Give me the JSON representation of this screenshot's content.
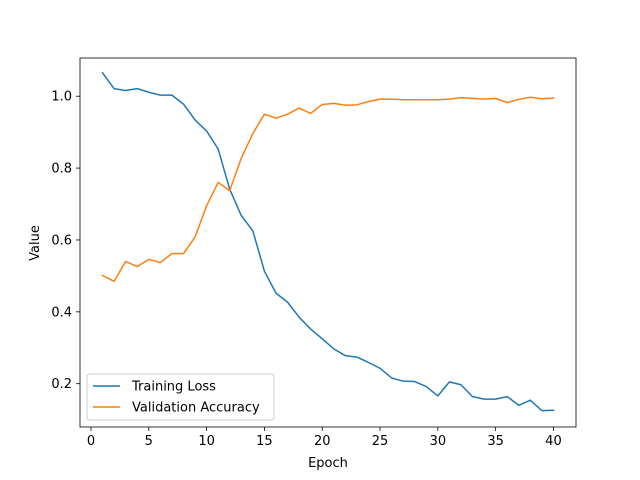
{
  "chart_data": {
    "type": "line",
    "title": "",
    "xlabel": "Epoch",
    "ylabel": "Value",
    "xlim": [
      -0.95,
      41.95
    ],
    "ylim": [
      0.0795,
      1.1063
    ],
    "xticks": [
      0,
      5,
      10,
      15,
      20,
      25,
      30,
      35,
      40
    ],
    "yticks": [
      0.2,
      0.4,
      0.6,
      0.8,
      1.0
    ],
    "xtick_labels": [
      "0",
      "5",
      "10",
      "15",
      "20",
      "25",
      "30",
      "35",
      "40"
    ],
    "ytick_labels": [
      "0.2",
      "0.4",
      "0.6",
      "0.8",
      "1.0"
    ],
    "grid": false,
    "legend_position": "lower-left",
    "x": [
      1,
      2,
      3,
      4,
      5,
      6,
      7,
      8,
      9,
      10,
      11,
      12,
      13,
      14,
      15,
      16,
      17,
      18,
      19,
      20,
      21,
      22,
      23,
      24,
      25,
      26,
      27,
      28,
      29,
      30,
      31,
      32,
      33,
      34,
      35,
      36,
      37,
      38,
      39,
      40
    ],
    "series": [
      {
        "name": "Training Loss",
        "color": "#1f77b4",
        "values": [
          1.065,
          1.021,
          1.016,
          1.021,
          1.011,
          1.003,
          1.003,
          0.978,
          0.934,
          0.903,
          0.853,
          0.741,
          0.668,
          0.625,
          0.513,
          0.452,
          0.427,
          0.385,
          0.352,
          0.325,
          0.297,
          0.278,
          0.274,
          0.259,
          0.243,
          0.216,
          0.207,
          0.206,
          0.192,
          0.166,
          0.205,
          0.197,
          0.164,
          0.157,
          0.157,
          0.164,
          0.14,
          0.154,
          0.125,
          0.126
        ]
      },
      {
        "name": "Validation Accuracy",
        "color": "#ff7f0e",
        "values": [
          0.501,
          0.485,
          0.54,
          0.526,
          0.546,
          0.537,
          0.562,
          0.562,
          0.608,
          0.695,
          0.76,
          0.737,
          0.828,
          0.896,
          0.95,
          0.939,
          0.95,
          0.967,
          0.952,
          0.977,
          0.98,
          0.975,
          0.976,
          0.985,
          0.992,
          0.992,
          0.99,
          0.99,
          0.99,
          0.99,
          0.992,
          0.996,
          0.994,
          0.992,
          0.994,
          0.982,
          0.991,
          0.997,
          0.993,
          0.995
        ]
      }
    ]
  }
}
